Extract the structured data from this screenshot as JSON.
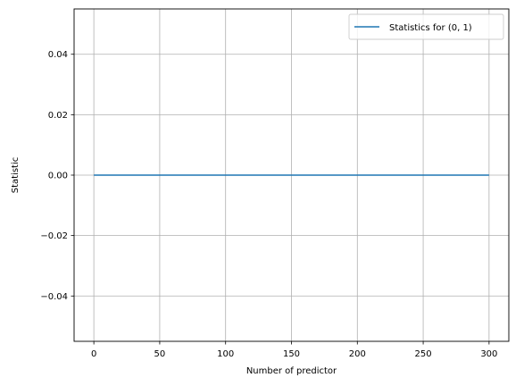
{
  "chart_data": {
    "type": "line",
    "title": "",
    "xlabel": "Number of predictor",
    "ylabel": "Statistic",
    "xlim": [
      -15,
      315
    ],
    "ylim": [
      -0.055,
      0.055
    ],
    "xticks": [
      0,
      50,
      100,
      150,
      200,
      250,
      300
    ],
    "xtick_labels": [
      "0",
      "50",
      "100",
      "150",
      "200",
      "250",
      "300"
    ],
    "yticks": [
      -0.04,
      -0.02,
      0.0,
      0.02,
      0.04
    ],
    "ytick_labels": [
      "−0.04",
      "−0.02",
      "0.00",
      "0.02",
      "0.04"
    ],
    "grid": true,
    "legend_position": "top-right",
    "series": [
      {
        "name": "Statistics for (0, 1)",
        "color": "#1f77b4",
        "x": [
          0,
          300
        ],
        "y": [
          0.0,
          0.0
        ]
      }
    ]
  }
}
